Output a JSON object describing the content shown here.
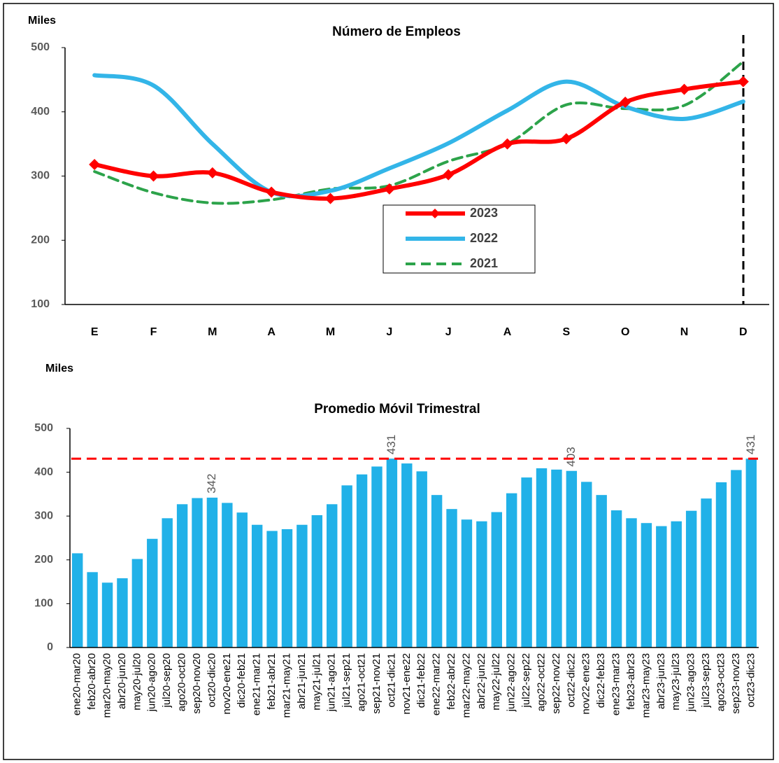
{
  "chart_data": [
    {
      "type": "line",
      "title": "Número de Empleos",
      "ylabel": "Miles",
      "categories": [
        "E",
        "F",
        "M",
        "A",
        "M",
        "J",
        "J",
        "A",
        "S",
        "O",
        "N",
        "D"
      ],
      "ylim": [
        100,
        500
      ],
      "yticks": [
        100,
        200,
        300,
        400,
        500
      ],
      "series": [
        {
          "name": "2023",
          "color": "#ff0000",
          "marker": "diamond",
          "dash": false,
          "values": [
            318,
            300,
            305,
            275,
            265,
            280,
            302,
            350,
            358,
            415,
            435,
            447
          ]
        },
        {
          "name": "2022",
          "color": "#33b5e8",
          "marker": null,
          "dash": false,
          "values": [
            457,
            441,
            350,
            275,
            277,
            312,
            351,
            402,
            447,
            408,
            389,
            416
          ]
        },
        {
          "name": "2021",
          "color": "#2ca34a",
          "marker": null,
          "dash": true,
          "values": [
            307,
            274,
            258,
            263,
            280,
            285,
            323,
            350,
            411,
            405,
            410,
            478
          ]
        }
      ]
    },
    {
      "type": "bar",
      "title": "Promedio Móvil Trimestral",
      "ylabel": "Miles",
      "ylim": [
        0,
        500
      ],
      "yticks": [
        0,
        100,
        200,
        300,
        400,
        500
      ],
      "color": "#21b1e8",
      "reference_line": {
        "value": 431,
        "color": "#ff0000"
      },
      "categories": [
        "ene20-mar20",
        "feb20-abr20",
        "mar20-may20",
        "abr20-jun20",
        "may20-jul20",
        "jun20-ago20",
        "jul20-sep20",
        "ago20-oct20",
        "sep20-nov20",
        "oct20-dic20",
        "nov20-ene21",
        "dic20-feb21",
        "ene21-mar21",
        "feb21-abr21",
        "mar21-may21",
        "abr21-jun21",
        "may21-jul21",
        "jun21-ago21",
        "jul21-sep21",
        "ago21-oct21",
        "sep21-nov21",
        "oct21-dic21",
        "nov21-ene22",
        "dic21-feb22",
        "ene22-mar22",
        "feb22-abr22",
        "mar22-may22",
        "abr22-jun22",
        "may22-jul22",
        "jun22-ago22",
        "jul22-sep22",
        "ago22-oct22",
        "sep22-nov22",
        "oct22-dic22",
        "nov22-ene23",
        "dic22-feb23",
        "ene23-mar23",
        "feb23-abr23",
        "mar23-may23",
        "abr23-jun23",
        "may23-jul23",
        "jun23-ago23",
        "jul23-sep23",
        "ago23-oct23",
        "sep23-nov23",
        "oct23-dic23"
      ],
      "values": [
        215,
        172,
        148,
        158,
        202,
        248,
        295,
        327,
        341,
        342,
        330,
        308,
        280,
        266,
        270,
        280,
        302,
        327,
        370,
        395,
        413,
        431,
        420,
        402,
        348,
        316,
        292,
        288,
        309,
        352,
        388,
        409,
        406,
        403,
        378,
        348,
        313,
        295,
        284,
        277,
        288,
        312,
        340,
        377,
        405,
        431
      ],
      "value_labels": [
        null,
        null,
        null,
        null,
        null,
        null,
        null,
        null,
        null,
        "342",
        null,
        null,
        null,
        null,
        null,
        null,
        null,
        null,
        null,
        null,
        null,
        "431",
        null,
        null,
        null,
        null,
        null,
        null,
        null,
        null,
        null,
        null,
        null,
        "403",
        null,
        null,
        null,
        null,
        null,
        null,
        null,
        null,
        null,
        null,
        null,
        "431"
      ]
    }
  ]
}
